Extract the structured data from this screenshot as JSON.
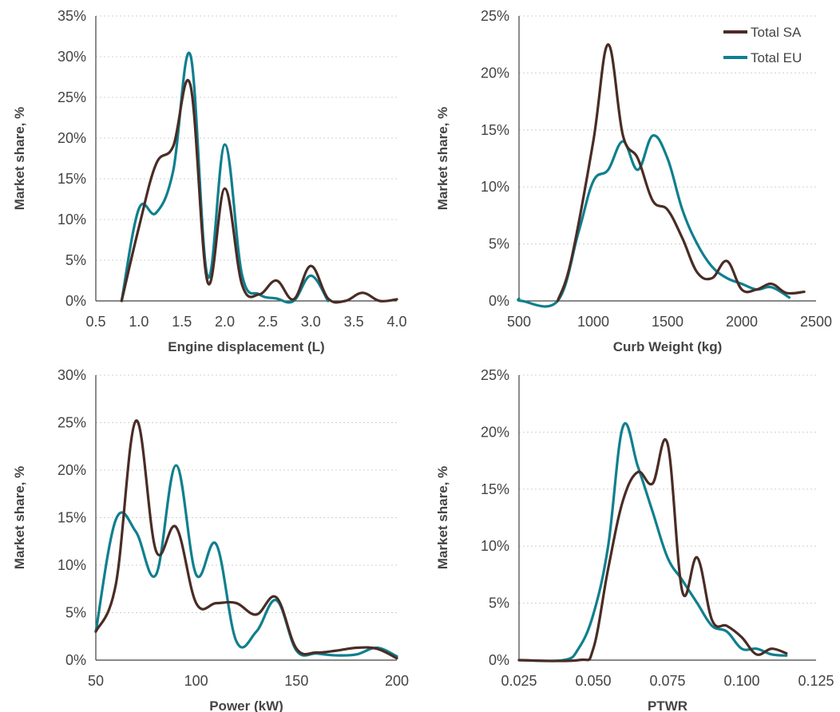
{
  "colors": {
    "sa": "#4a2c25",
    "eu": "#0f7f8e"
  },
  "legend": {
    "sa": "Total SA",
    "eu": "Total EU"
  },
  "chart_data": [
    {
      "type": "line",
      "xlabel": "Engine displacement (L)",
      "ylabel": "Market share, %",
      "xlim": [
        0.5,
        4.0
      ],
      "ylim": [
        0,
        35
      ],
      "xticks": [
        0.5,
        1.0,
        1.5,
        2.0,
        2.5,
        3.0,
        3.5,
        4.0
      ],
      "xtick_labels": [
        "0.5",
        "1.0",
        "1.5",
        "2.0",
        "2.5",
        "3.0",
        "3.5",
        "4.0"
      ],
      "yticks": [
        0,
        5,
        10,
        15,
        20,
        25,
        30,
        35
      ],
      "ytick_labels": [
        "0%",
        "5%",
        "10%",
        "15%",
        "20%",
        "25%",
        "30%",
        "35%"
      ],
      "grid": true,
      "series": [
        {
          "name": "Total SA",
          "key": "sa",
          "x": [
            0.8,
            1.0,
            1.2,
            1.4,
            1.6,
            1.8,
            2.0,
            2.2,
            2.4,
            2.6,
            2.8,
            3.0,
            3.2,
            3.4,
            3.6,
            3.8,
            4.0
          ],
          "y": [
            0,
            9,
            16.8,
            19,
            26.5,
            2.3,
            13.8,
            2,
            0.8,
            2.5,
            0.2,
            4.3,
            0.3,
            0,
            1,
            0,
            0.2
          ]
        },
        {
          "name": "Total EU",
          "key": "eu",
          "x": [
            0.8,
            1.0,
            1.2,
            1.4,
            1.6,
            1.8,
            2.0,
            2.2,
            2.4,
            2.6,
            2.8,
            3.0,
            3.2
          ],
          "y": [
            0,
            11.3,
            10.8,
            16,
            30.2,
            3,
            19.2,
            3.2,
            0.8,
            0.3,
            0,
            3.1,
            0
          ]
        }
      ]
    },
    {
      "type": "line",
      "xlabel": "Curb Weight (kg)",
      "ylabel": "Market share, %",
      "xlim": [
        500,
        2500
      ],
      "ylim": [
        0,
        25
      ],
      "xticks": [
        500,
        1000,
        1500,
        2000,
        2500
      ],
      "xtick_labels": [
        "500",
        "1000",
        "1500",
        "2000",
        "2500"
      ],
      "yticks": [
        0,
        5,
        10,
        15,
        20,
        25
      ],
      "ytick_labels": [
        "0%",
        "5%",
        "10%",
        "15%",
        "20%",
        "25%"
      ],
      "grid": true,
      "legend_position": "top-right",
      "series": [
        {
          "name": "Total SA",
          "key": "sa",
          "x": [
            760,
            850,
            1000,
            1100,
            1200,
            1300,
            1400,
            1500,
            1600,
            1700,
            1800,
            1900,
            2000,
            2100,
            2200,
            2300,
            2420
          ],
          "y": [
            0,
            3.5,
            14,
            22.5,
            14.5,
            12.5,
            8.8,
            8,
            5.5,
            2.5,
            2,
            3.5,
            1,
            1,
            1.5,
            0.7,
            0.8
          ]
        },
        {
          "name": "Total EU",
          "key": "eu",
          "x": [
            500,
            520,
            760,
            900,
            1000,
            1100,
            1200,
            1300,
            1400,
            1500,
            1600,
            1700,
            1800,
            1900,
            2000,
            2100,
            2200,
            2320
          ],
          "y": [
            0.2,
            0,
            0,
            6,
            10.5,
            11.5,
            14,
            11.5,
            14.5,
            12.5,
            8,
            5,
            3,
            2,
            1.5,
            1,
            1.2,
            0.3
          ]
        }
      ]
    },
    {
      "type": "line",
      "xlabel": "Power (kW)",
      "ylabel": "Market share, %",
      "xlim": [
        50,
        200
      ],
      "ylim": [
        0,
        30
      ],
      "xticks": [
        50,
        100,
        150,
        200
      ],
      "xtick_labels": [
        "50",
        "100",
        "150",
        "200"
      ],
      "yticks": [
        0,
        5,
        10,
        15,
        20,
        25,
        30
      ],
      "ytick_labels": [
        "0%",
        "5%",
        "10%",
        "15%",
        "20%",
        "25%",
        "30%"
      ],
      "grid": true,
      "series": [
        {
          "name": "Total SA",
          "key": "sa",
          "x": [
            50,
            60,
            70,
            80,
            90,
            100,
            110,
            120,
            130,
            140,
            150,
            160,
            170,
            180,
            190,
            200
          ],
          "y": [
            3,
            8,
            25.2,
            11.5,
            14,
            6,
            6,
            6,
            4.8,
            6.6,
            1.2,
            0.8,
            1,
            1.3,
            1.2,
            0.2
          ]
        },
        {
          "name": "Total EU",
          "key": "eu",
          "x": [
            50,
            60,
            70,
            80,
            90,
            100,
            110,
            120,
            130,
            140,
            150,
            160,
            170,
            180,
            190,
            200
          ],
          "y": [
            3,
            14.8,
            13.5,
            9,
            20.5,
            9,
            12.2,
            2,
            3,
            6.3,
            1,
            0.7,
            0.5,
            0.6,
            1.3,
            0.4
          ]
        }
      ]
    },
    {
      "type": "line",
      "xlabel": "PTWR",
      "ylabel": "Market share, %",
      "xlim": [
        0.025,
        0.125
      ],
      "ylim": [
        0,
        25
      ],
      "xticks": [
        0.025,
        0.05,
        0.075,
        0.1,
        0.125
      ],
      "xtick_labels": [
        "0.025",
        "0.050",
        "0.075",
        "0.100",
        "0.125"
      ],
      "yticks": [
        0,
        5,
        10,
        15,
        20,
        25
      ],
      "ytick_labels": [
        "0%",
        "5%",
        "10%",
        "15%",
        "20%",
        "25%"
      ],
      "grid": true,
      "series": [
        {
          "name": "Total SA",
          "key": "sa",
          "x": [
            0.025,
            0.045,
            0.05,
            0.055,
            0.06,
            0.065,
            0.07,
            0.075,
            0.08,
            0.085,
            0.09,
            0.095,
            0.1,
            0.105,
            0.11,
            0.115
          ],
          "y": [
            0,
            0,
            1,
            8,
            14,
            16.5,
            15.5,
            19,
            6,
            9,
            3.5,
            3,
            2,
            0.5,
            1,
            0.6
          ]
        },
        {
          "name": "Total EU",
          "key": "eu",
          "x": [
            0.025,
            0.04,
            0.045,
            0.05,
            0.055,
            0.06,
            0.065,
            0.07,
            0.075,
            0.08,
            0.085,
            0.09,
            0.095,
            0.1,
            0.105,
            0.11,
            0.115
          ],
          "y": [
            0,
            0,
            1,
            4,
            10,
            20.5,
            17,
            13,
            9,
            7,
            5,
            3,
            2.5,
            1,
            1,
            0.5,
            0.4
          ]
        }
      ]
    }
  ]
}
